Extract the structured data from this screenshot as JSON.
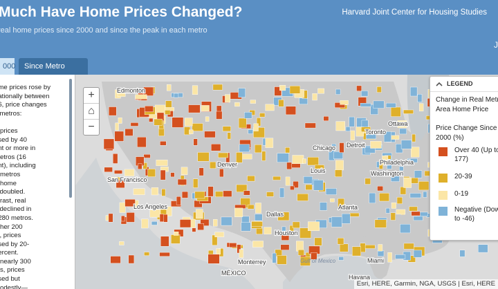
{
  "header": {
    "title": "Much Have Home Prices Changed?",
    "subtitle": "real home prices since 2000 and since the peak in each metro",
    "org": "Harvard Joint Center for Housing Studies",
    "corner_mark": "J"
  },
  "tabs": [
    {
      "label": "000",
      "active": true
    },
    {
      "label": "Since Metro Peak",
      "active": false
    }
  ],
  "side_panel": {
    "lines": [
      "ome prices rose by",
      "nationally between",
      "16, price changes",
      "s metros:",
      "",
      "e prices",
      "ased by 40",
      "ent or more in",
      "metros (16",
      "ent), including",
      "e metros",
      "e home",
      "s doubled.",
      "ntrast, real",
      "s declined in",
      "t 280 metros.",
      "other 200",
      "ts, prices",
      "ased by 20-",
      "percent.",
      "n nearly 300",
      "ets, prices",
      "ased but",
      "modestly—"
    ]
  },
  "map": {
    "zoom_in": "+",
    "home": "⌂",
    "zoom_out": "−",
    "places": [
      "Edmonton",
      "Ottawa",
      "Toronto",
      "Chicago",
      "Detroit",
      "Denver",
      "San Francisco",
      "Los Angeles",
      "Dallas",
      "Houston",
      "Atlanta",
      "Philadelphia",
      "Washington",
      "Louis",
      "Miami",
      "Monterrey",
      "MÉXICO",
      "Havana",
      "Gulf of Mexico"
    ],
    "attribution": "Esri, HERE, Garmin, NGA, USGS | Esri, HERE"
  },
  "legend": {
    "header": "LEGEND",
    "title_lines": [
      "Change in Real Metr",
      "Area Home Price"
    ],
    "subtitle_lines": [
      "Price Change Since",
      "2000 (%)"
    ],
    "items": [
      {
        "lines": [
          "Over 40 (Up to",
          "177)"
        ],
        "color": "#d4501f"
      },
      {
        "lines": [
          "20-39"
        ],
        "color": "#dfb02b"
      },
      {
        "lines": [
          "0-19"
        ],
        "color": "#fbe6a6"
      },
      {
        "lines": [
          "Negative (Dow",
          "to -46)"
        ],
        "color": "#7fb3d8"
      }
    ]
  },
  "colors": {
    "header": "#5a8fc4",
    "tab_active": "#cfe4f5",
    "tab_inactive": "#3b6fa0",
    "land": "#d6d6d6",
    "over40": "#d4501f",
    "p20to39": "#dfb02b",
    "p0to19": "#fbe6a6",
    "negative": "#7fb3d8"
  }
}
